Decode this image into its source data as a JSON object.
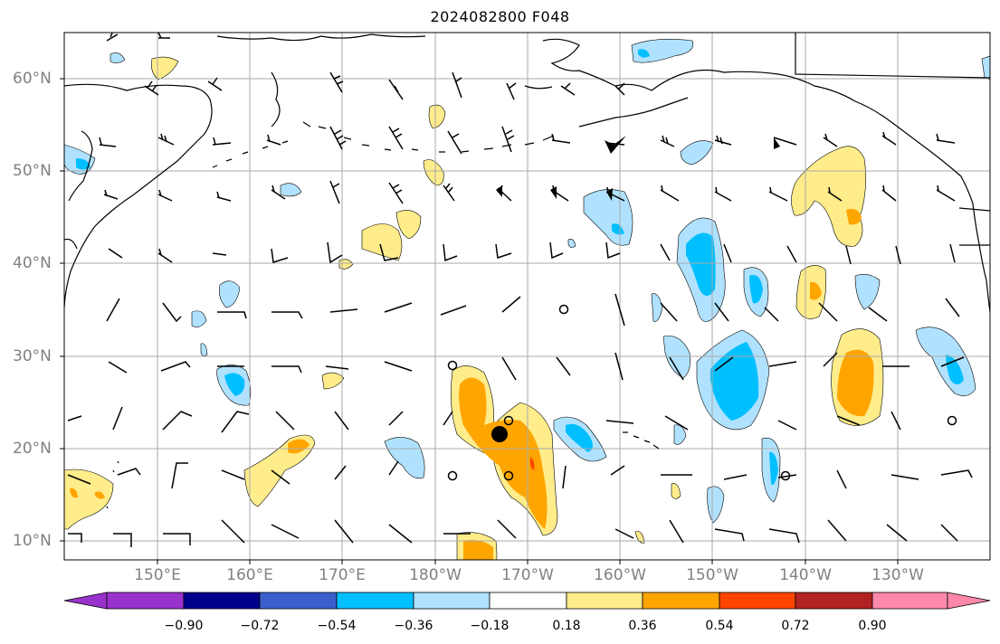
{
  "title": "2024082800 F048",
  "latitude_labels": [
    "60°N",
    "50°N",
    "40°N",
    "30°N",
    "20°N",
    "10°N"
  ],
  "longitude_labels": [
    "150°E",
    "160°E",
    "170°E",
    "180°W",
    "170°W",
    "160°W",
    "150°W",
    "140°W",
    "130°W"
  ],
  "colorbar": {
    "levels": [
      "−0.90",
      "−0.72",
      "−0.54",
      "−0.36",
      "−0.18",
      "0.18",
      "0.36",
      "0.54",
      "0.72",
      "0.90"
    ],
    "colors": [
      "#9932cc",
      "#00008b",
      "#3a5fcd",
      "#00bfff",
      "#b0e2ff",
      "#ffffff",
      "#ffec8b",
      "#ffa500",
      "#ff4500",
      "#b22222",
      "#ff88aa"
    ]
  },
  "colors": {
    "frame": "#000000",
    "gridlines": "#aaaaaa",
    "coastline": "#000000",
    "axis_labels": "#808080"
  },
  "icons": [
    "wind-barb-icon",
    "station-circle-icon",
    "storm-center-dot-icon"
  ]
}
